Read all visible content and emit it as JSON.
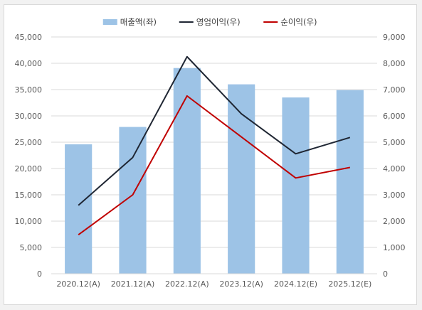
{
  "chart_data": {
    "type": "bar-line-combo",
    "title": "",
    "categories": [
      "2020.12(A)",
      "2021.12(A)",
      "2022.12(A)",
      "2023.12(A)",
      "2024.12(E)",
      "2025.12(E)"
    ],
    "series": [
      {
        "name": "매출액(좌)",
        "type": "bar",
        "axis": "left",
        "color": "#9dc3e6",
        "values": [
          24600,
          27900,
          39100,
          36000,
          33500,
          34900
        ]
      },
      {
        "name": "영업이익(우)",
        "type": "line",
        "axis": "right",
        "color": "#1f2633",
        "values": [
          2600,
          4420,
          8250,
          6080,
          4560,
          5180
        ]
      },
      {
        "name": "순이익(우)",
        "type": "line",
        "axis": "right",
        "color": "#c00000",
        "values": [
          1480,
          3000,
          6760,
          5200,
          3640,
          4040
        ]
      }
    ],
    "y_left": {
      "min": 0,
      "max": 45000,
      "step": 5000,
      "tick_labels": [
        "0",
        "5,000",
        "10,000",
        "15,000",
        "20,000",
        "25,000",
        "30,000",
        "35,000",
        "40,000",
        "45,000"
      ]
    },
    "y_right": {
      "min": 0,
      "max": 9000,
      "step": 1000,
      "tick_labels": [
        "0",
        "1,000",
        "2,000",
        "3,000",
        "4,000",
        "5,000",
        "6,000",
        "7,000",
        "8,000",
        "9,000"
      ]
    },
    "grid": true,
    "legend_position": "top-center"
  }
}
